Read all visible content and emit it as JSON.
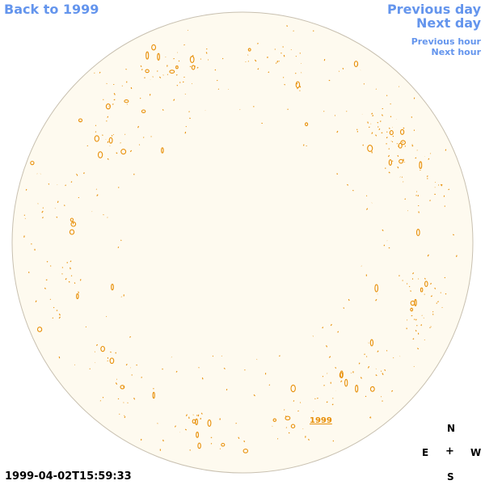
{
  "navigation": {
    "back_label": "Back to 1999",
    "prev_day_label": "Previous day",
    "next_day_label": "Next day",
    "prev_hour_label": "Previous hour",
    "next_hour_label": "Next hour"
  },
  "map": {
    "year_label": "1999",
    "timestamp": "1999-04-02T15:59:33",
    "disk_fill_color": "#fefaef",
    "disk_stroke_color": "#c8c0b0",
    "feature_color": "#e8900a"
  },
  "compass": {
    "north": "N",
    "south": "S",
    "east": "E",
    "west": "W",
    "center": "+"
  }
}
